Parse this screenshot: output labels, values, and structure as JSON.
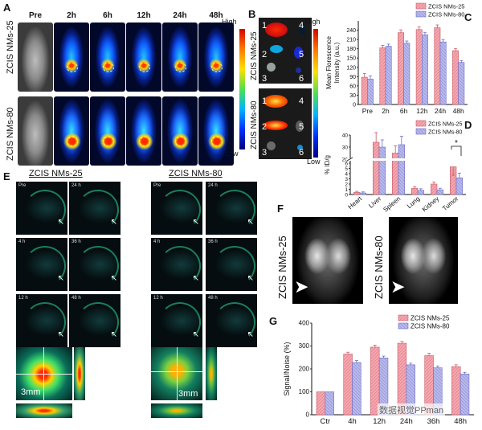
{
  "panels": {
    "A": "A",
    "B": "B",
    "C": "C",
    "D": "D",
    "E": "E",
    "F": "F",
    "G": "G"
  },
  "panel_a": {
    "timepoints": [
      "Pre",
      "2h",
      "6h",
      "12h",
      "24h",
      "48h"
    ],
    "row_labels": [
      "ZCIS NMs-25",
      "ZCIS NMs-80"
    ],
    "scale_high": "High",
    "scale_low": "Low"
  },
  "panel_b": {
    "row_labels": [
      "ZCIS NMs-25",
      "ZCIS NMs-80"
    ],
    "organ_numbers": [
      "1",
      "2",
      "3",
      "4",
      "5",
      "6"
    ],
    "scale_high": "High",
    "scale_low": "Low"
  },
  "panel_e": {
    "group_titles": [
      "ZCIS NMs-25",
      "ZCIS NMs-80"
    ],
    "tile_labels": [
      "Pre",
      "24 h",
      "4 h",
      "36 h",
      "12 h",
      "48 h"
    ],
    "scale": "3mm"
  },
  "panel_f": {
    "row_labels": [
      "ZCIS NMs-25",
      "ZCIS NMs-80"
    ]
  },
  "watermark": "数据视觉PPman",
  "colors": {
    "series1": "#f4a6ae",
    "series2": "#b7b8ea",
    "line1": "#c75a66",
    "line2": "#6b6dc9"
  },
  "chart_data": [
    {
      "panel": "C",
      "type": "bar",
      "categories": [
        "Pre",
        "2h",
        "6h",
        "12h",
        "24h",
        "48h"
      ],
      "series": [
        {
          "name": "ZCIS NMs-25",
          "values": [
            88,
            183,
            232,
            242,
            248,
            174
          ],
          "errors": [
            12,
            8,
            9,
            9,
            9,
            7
          ]
        },
        {
          "name": "ZCIS NMs-80",
          "values": [
            82,
            188,
            198,
            225,
            202,
            136
          ],
          "errors": [
            10,
            7,
            7,
            8,
            8,
            6
          ]
        }
      ],
      "xlabel": "",
      "ylabel": "Mean Florescence Intensity (a.u.)",
      "ylim": [
        0,
        270
      ],
      "yticks": [
        0,
        30,
        60,
        90,
        120,
        150,
        180,
        210,
        240
      ],
      "legend": "top-right"
    },
    {
      "panel": "D",
      "type": "bar",
      "categories": [
        "Heart",
        "Liver",
        "Spleen",
        "Lung",
        "Kidney",
        "Tumor"
      ],
      "series": [
        {
          "name": "ZCIS NMs-25",
          "values": [
            0.4,
            34,
            25,
            1.2,
            2,
            5.3
          ],
          "errors": [
            0.2,
            8,
            6,
            0.3,
            0.4,
            1.3
          ]
        },
        {
          "name": "ZCIS NMs-80",
          "values": [
            0.3,
            30,
            32,
            0.8,
            0.9,
            3.2
          ],
          "errors": [
            0.2,
            6,
            7,
            0.3,
            0.3,
            0.9
          ]
        }
      ],
      "xlabel": "",
      "ylabel": "% ID/g",
      "ylim": [
        0,
        40
      ],
      "axis_break": [
        6,
        20
      ],
      "yticks": [
        0,
        1,
        2,
        3,
        4,
        5,
        6,
        20,
        30,
        40
      ],
      "annotation": "*",
      "legend": "top-right"
    },
    {
      "panel": "G",
      "type": "bar",
      "categories": [
        "Ctr",
        "4h",
        "12h",
        "24h",
        "36h",
        "48h"
      ],
      "series": [
        {
          "name": "ZCIS NMs-25",
          "values": [
            100,
            265,
            295,
            312,
            258,
            210
          ],
          "errors": [
            0,
            8,
            9,
            8,
            10,
            8
          ]
        },
        {
          "name": "ZCIS NMs-80",
          "values": [
            100,
            228,
            248,
            218,
            205,
            178
          ],
          "errors": [
            0,
            9,
            8,
            7,
            8,
            7
          ]
        }
      ],
      "xlabel": "",
      "ylabel": "Signal/Noise (%)",
      "ylim": [
        0,
        400
      ],
      "yticks": [
        0,
        100,
        200,
        300,
        400
      ],
      "legend": "top-right"
    }
  ]
}
